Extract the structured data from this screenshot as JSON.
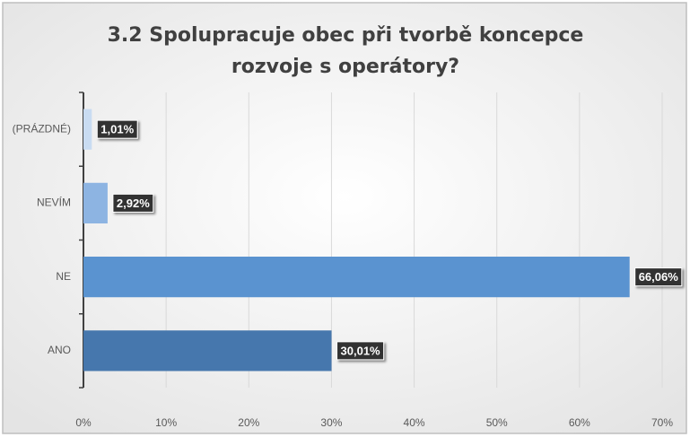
{
  "chart_data": {
    "type": "bar",
    "orientation": "horizontal",
    "title": "3.2 Spolupracuje obec při tvorbě koncepce rozvoje s operátory?",
    "categories": [
      "(PRÁZDNÉ)",
      "NEVÍM",
      "NE",
      "ANO"
    ],
    "values": [
      1.01,
      2.92,
      66.06,
      30.01
    ],
    "value_labels": [
      "1,01%",
      "2,92%",
      "66,06%",
      "30,01%"
    ],
    "colors": [
      "#c9dcf2",
      "#8db4e2",
      "#5a93d0",
      "#4677ad"
    ],
    "xlim": [
      0,
      70
    ],
    "xticks": [
      {
        "value": 0,
        "label": "0%"
      },
      {
        "value": 10,
        "label": "10%"
      },
      {
        "value": 20,
        "label": "20%"
      },
      {
        "value": 30,
        "label": "30%"
      },
      {
        "value": 40,
        "label": "40%"
      },
      {
        "value": 50,
        "label": "50%"
      },
      {
        "value": 60,
        "label": "60%"
      },
      {
        "value": 70,
        "label": "70%"
      }
    ],
    "grid": true
  }
}
